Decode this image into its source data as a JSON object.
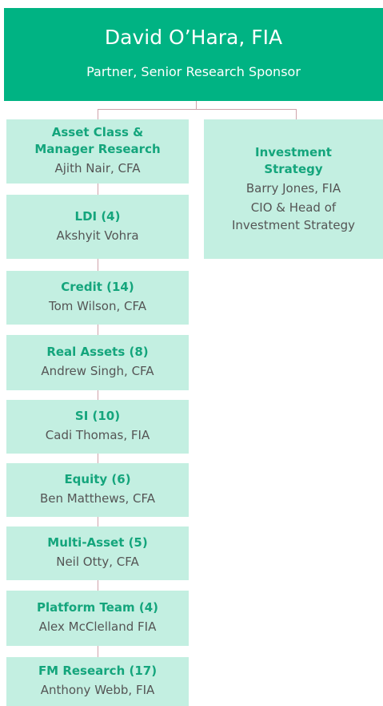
{
  "header": {
    "name": "David O’Hara, FIA",
    "role": "Partner, Senior Research Sponsor"
  },
  "left_nodes": [
    {
      "title_lines": [
        "Asset Class &",
        "Manager Research"
      ],
      "name": "Ajith Nair, CFA"
    },
    {
      "title_lines": [
        "LDI (4)"
      ],
      "name": "Akshyit Vohra"
    },
    {
      "title_lines": [
        "Credit (14)"
      ],
      "name": "Tom Wilson, CFA"
    },
    {
      "title_lines": [
        "Real Assets (8)"
      ],
      "name": "Andrew Singh, CFA"
    },
    {
      "title_lines": [
        "SI (10)"
      ],
      "name": "Cadi Thomas, FIA"
    },
    {
      "title_lines": [
        "Equity (6)"
      ],
      "name": "Ben Matthews, CFA"
    },
    {
      "title_lines": [
        "Multi-Asset (5)"
      ],
      "name": "Neil Otty, CFA"
    },
    {
      "title_lines": [
        "Platform Team (4)"
      ],
      "name": "Alex McClelland FIA"
    },
    {
      "title_lines": [
        "FM Research (17)"
      ],
      "name": "Anthony Webb, FIA"
    }
  ],
  "right_node": {
    "title_lines": [
      "Investment",
      "Strategy"
    ],
    "name": "Barry Jones, FIA",
    "role_lines": [
      "CIO & Head of",
      "Investment Strategy"
    ]
  }
}
